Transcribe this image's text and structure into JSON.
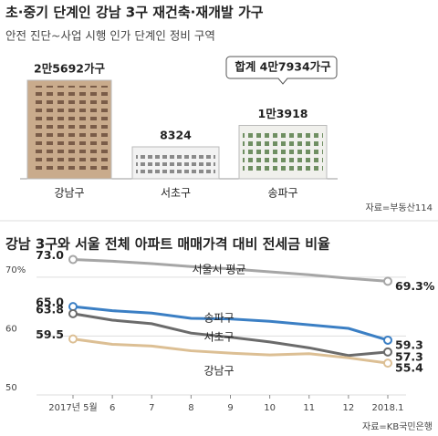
{
  "chart_data": [
    {
      "type": "building-bar",
      "title": "초·중기 단계인 강남 3구 재건축·재개발 가구",
      "subtitle": "안전 진단~사업 시행 인가 단계인 정비 구역",
      "categories": [
        "강남구",
        "서초구",
        "송파구"
      ],
      "values": [
        25692,
        8324,
        13918
      ],
      "value_labels": [
        "2만5692가구",
        "8324",
        "1만3918"
      ],
      "colors": [
        "#c9ab8c",
        "#f2f2f2",
        "#f0f0ec"
      ],
      "annotation": "합계 4만7934가구",
      "source": "자료=부동산114"
    },
    {
      "type": "line",
      "title": "강남 3구와 서울 전체 아파트 매매가격 대비 전세금 비율",
      "categories": [
        "2017년 5월",
        "6",
        "7",
        "8",
        "9",
        "10",
        "11",
        "12",
        "2018.1"
      ],
      "series": [
        {
          "name": "서울시 평균",
          "color": "#a6a6a6",
          "values": [
            73.0,
            72.7,
            72.3,
            71.8,
            71.4,
            70.9,
            70.4,
            69.8,
            69.3
          ],
          "value_labels": [
            "73.0",
            null,
            null,
            null,
            null,
            null,
            null,
            null,
            "69.3%"
          ]
        },
        {
          "name": "송파구",
          "color": "#3b7fc4",
          "values": [
            65.0,
            64.3,
            63.9,
            63.0,
            62.9,
            62.5,
            61.9,
            61.3,
            59.3
          ],
          "value_labels": [
            "65.0",
            null,
            null,
            null,
            null,
            null,
            null,
            null,
            "59.3"
          ]
        },
        {
          "name": "서초구",
          "color": "#6b6b6b",
          "values": [
            63.8,
            62.7,
            62.1,
            60.5,
            59.8,
            59.0,
            58.0,
            56.7,
            57.3
          ],
          "value_labels": [
            "63.8",
            null,
            null,
            null,
            null,
            null,
            null,
            null,
            "57.3"
          ]
        },
        {
          "name": "강남구",
          "color": "#dcbf94",
          "values": [
            59.5,
            58.6,
            58.3,
            57.5,
            57.1,
            56.8,
            57.0,
            56.3,
            55.4
          ],
          "value_labels": [
            "59.5",
            null,
            null,
            null,
            null,
            null,
            null,
            null,
            "55.4"
          ]
        }
      ],
      "ylim": [
        50,
        74
      ],
      "yticks": [
        50,
        60,
        {
          "value": 70,
          "label": "70%"
        }
      ],
      "grid": true,
      "source": "자료=KB국민은행"
    }
  ]
}
